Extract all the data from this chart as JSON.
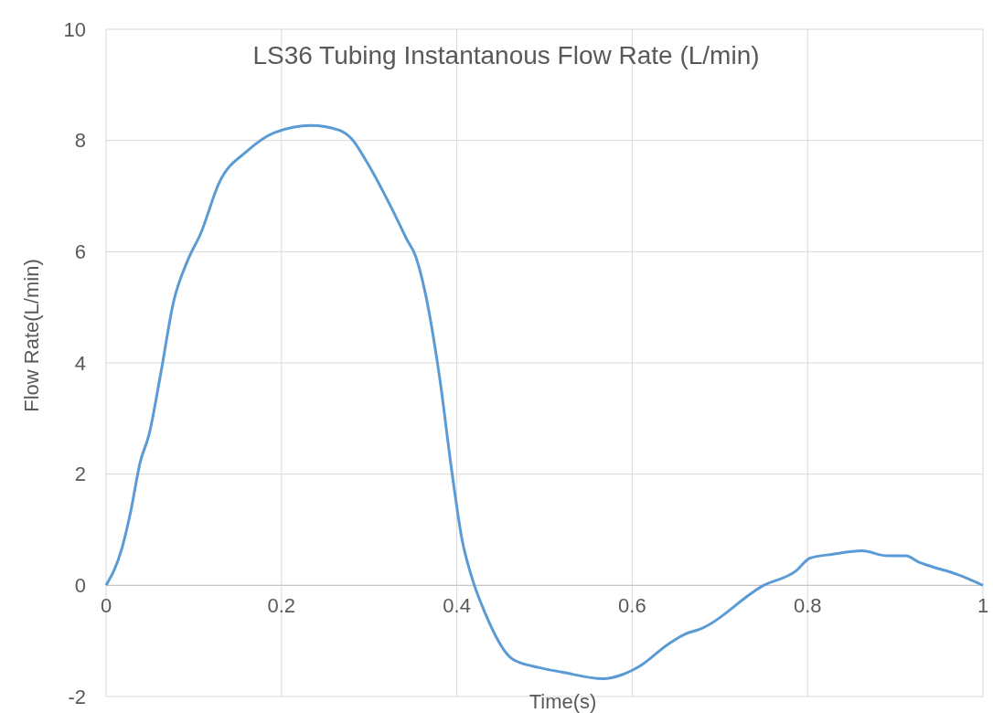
{
  "chart_data": {
    "type": "line",
    "title": "LS36 Tubing Instantanous Flow Rate (L/min)",
    "xlabel": "Time(s)",
    "ylabel": "Flow Rate(L/min)",
    "x": [
      0,
      0.018,
      0.028,
      0.039,
      0.049,
      0.062,
      0.077,
      0.093,
      0.108,
      0.129,
      0.161,
      0.192,
      0.234,
      0.265,
      0.28,
      0.296,
      0.327,
      0.343,
      0.353,
      0.364,
      0.38,
      0.395,
      0.406,
      0.416,
      0.432,
      0.463,
      0.494,
      0.52,
      0.567,
      0.588,
      0.609,
      0.64,
      0.661,
      0.677,
      0.75,
      0.786,
      0.803,
      0.829,
      0.862,
      0.891,
      0.912,
      0.928,
      0.943,
      0.97,
      1
    ],
    "series": [
      {
        "color": "#5b9bd5",
        "values": [
          0,
          0.66,
          1.32,
          2.22,
          2.71,
          3.78,
          5.1,
          5.84,
          6.33,
          7.24,
          7.81,
          8.14,
          8.27,
          8.19,
          8.03,
          7.65,
          6.74,
          6.22,
          5.92,
          5.26,
          3.78,
          1.97,
          0.82,
          0.2,
          -0.49,
          -1.32,
          -1.48,
          -1.56,
          -1.68,
          -1.61,
          -1.45,
          -1.07,
          -0.87,
          -0.79,
          0,
          0.25,
          0.49,
          0.56,
          0.62,
          0.53,
          0.53,
          0.41,
          0.33,
          0.2,
          0
        ]
      }
    ],
    "xlim": [
      0,
      1
    ],
    "xticks": [
      0,
      0.2,
      0.4,
      0.6,
      0.8,
      1
    ],
    "ylim": [
      -2,
      10
    ],
    "yticks": [
      -2,
      0,
      2,
      4,
      6,
      8,
      10
    ],
    "grid": true,
    "marker": "none",
    "line_style": "solid"
  }
}
